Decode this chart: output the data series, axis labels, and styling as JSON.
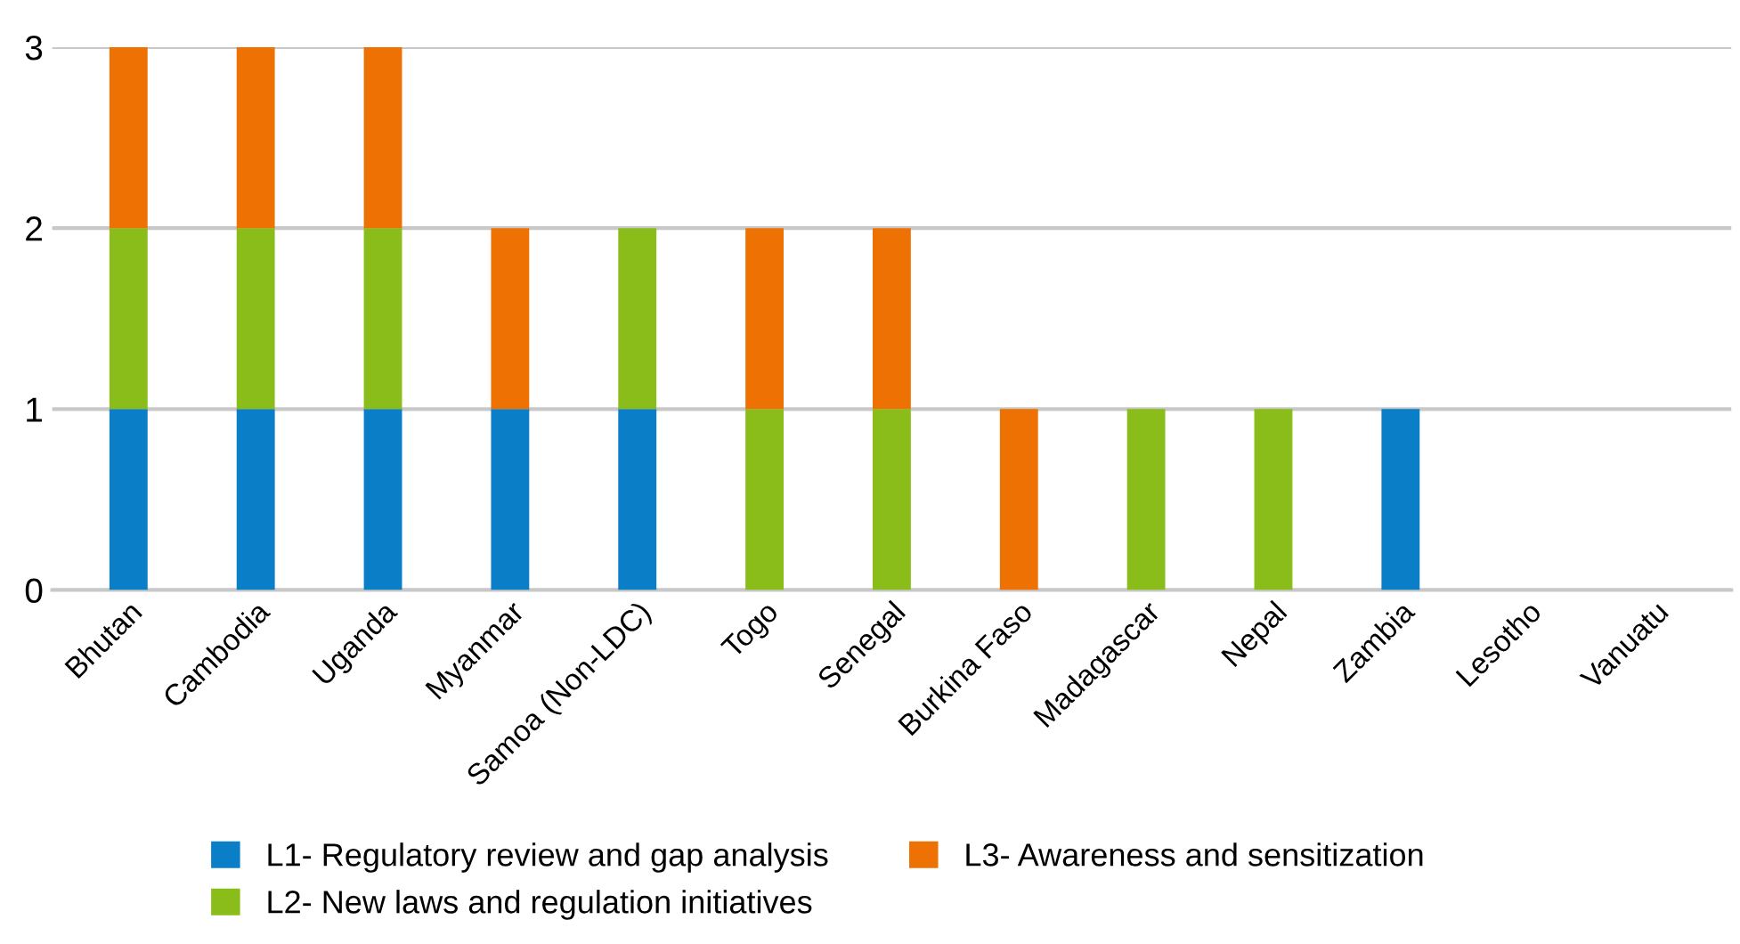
{
  "chart_data": {
    "type": "bar",
    "stacked": true,
    "categories": [
      "Bhutan",
      "Cambodia",
      "Uganda",
      "Myanmar",
      "Samoa (Non-LDC)",
      "Togo",
      "Senegal",
      "Burkina Faso",
      "Madagascar",
      "Nepal",
      "Zambia",
      "Lesotho",
      "Vanuatu"
    ],
    "series": [
      {
        "name": "L1- Regulatory review and gap analysis",
        "color": "#0a7fc7",
        "values": [
          1,
          1,
          1,
          1,
          1,
          0,
          0,
          0,
          0,
          0,
          1,
          0,
          0
        ]
      },
      {
        "name": "L2- New laws and regulation initiatives",
        "color": "#8bbd1a",
        "values": [
          1,
          1,
          1,
          0,
          1,
          1,
          1,
          0,
          1,
          1,
          0,
          0,
          0
        ]
      },
      {
        "name": "L3- Awareness and sensitization",
        "color": "#ee7203",
        "values": [
          1,
          1,
          1,
          1,
          0,
          1,
          1,
          1,
          0,
          0,
          0,
          0,
          0
        ]
      }
    ],
    "ylim": [
      0,
      3
    ],
    "yticks": [
      0,
      1,
      2,
      3
    ],
    "grid": "y",
    "legend": "bottom"
  }
}
